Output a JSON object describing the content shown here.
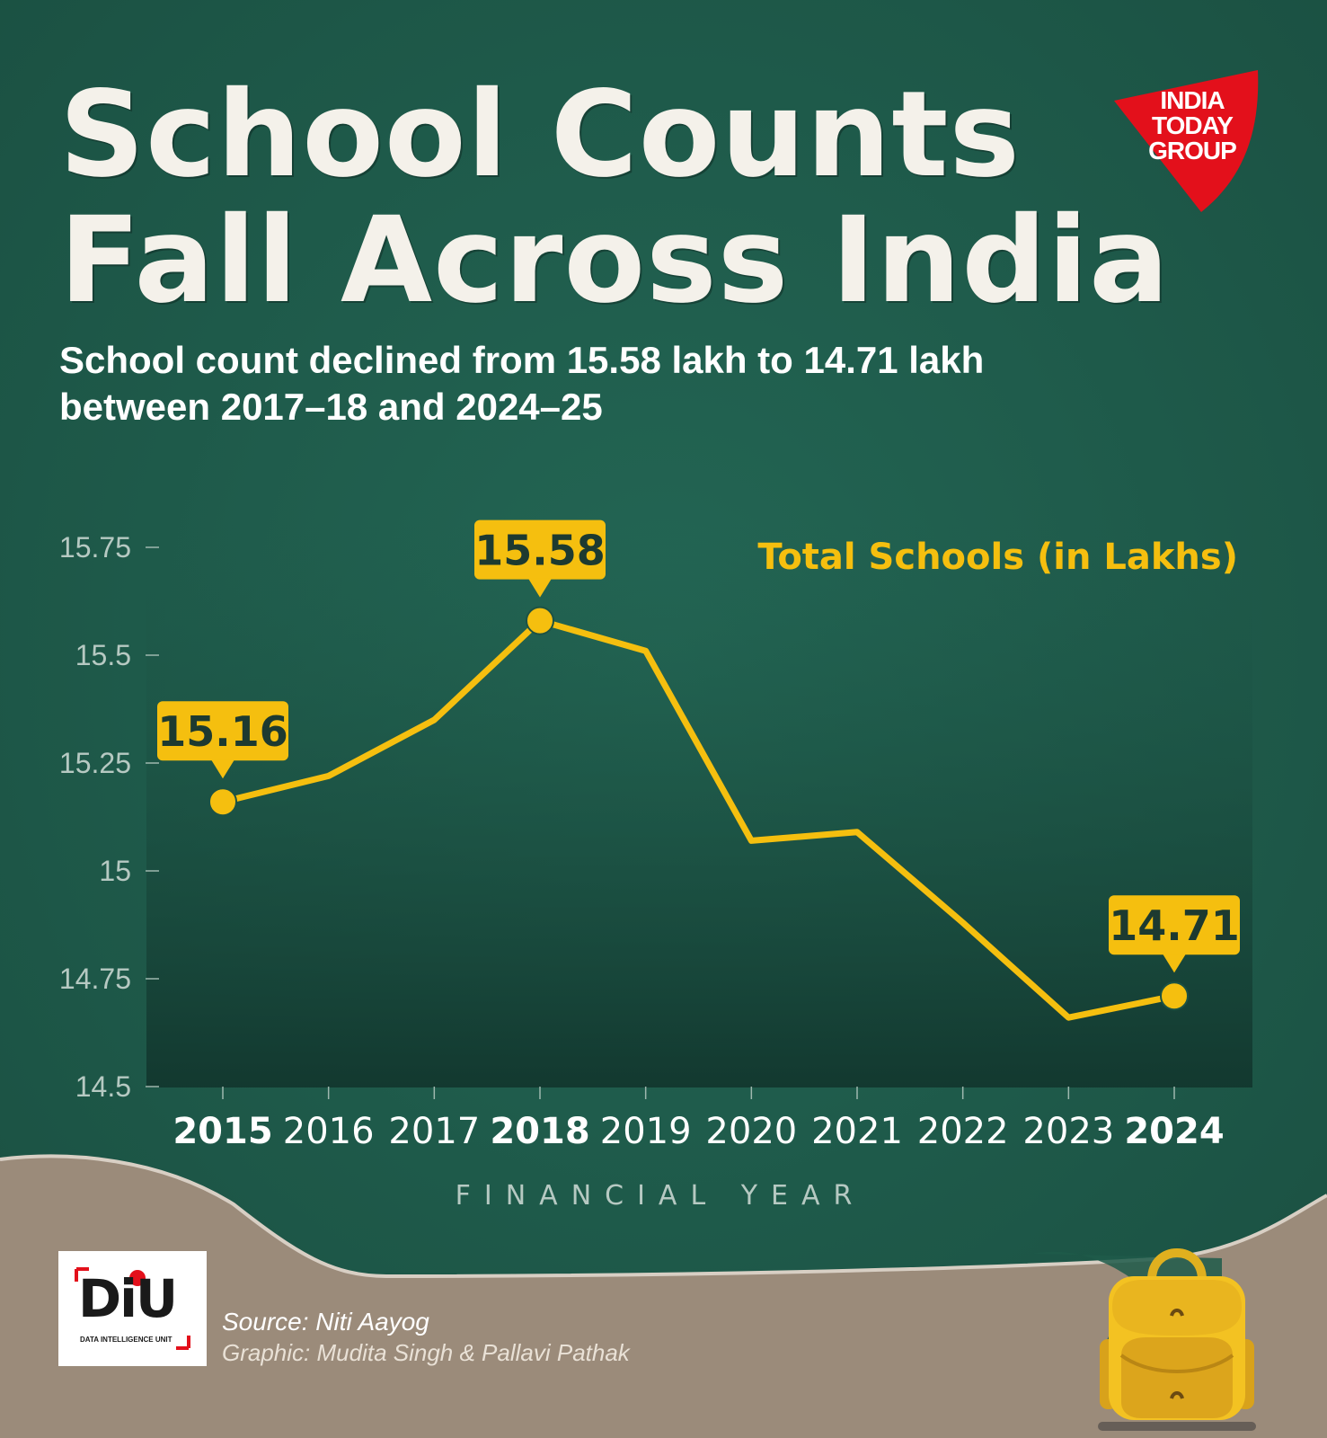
{
  "title": {
    "line1": "School Counts",
    "line2": "Fall Across India"
  },
  "subtitle": {
    "line1": "School count declined from 15.58 lakh to 14.71 lakh",
    "line2": "between 2017–18 and 2024–25"
  },
  "logo": {
    "line1": "INDIA",
    "line2": "TODAY",
    "line3": "GROUP"
  },
  "chart_data": {
    "type": "line",
    "series": [
      {
        "name": "Total Schools (in Lakhs)",
        "x": [
          2015,
          2016,
          2017,
          2018,
          2019,
          2020,
          2021,
          2022,
          2023,
          2024
        ],
        "values": [
          15.16,
          15.22,
          15.35,
          15.58,
          15.51,
          15.07,
          15.09,
          14.88,
          14.66,
          14.71
        ]
      }
    ],
    "xlabel": "FINANCIAL YEAR",
    "ylabel": "",
    "ylim": [
      14.5,
      15.75
    ],
    "yticks": [
      14.5,
      14.75,
      15,
      15.25,
      15.5,
      15.75
    ],
    "ytick_labels": [
      "14.5",
      "14.75",
      "15",
      "15.25",
      "15.5",
      "15.75"
    ],
    "highlighted_years": [
      2015,
      2018,
      2024
    ],
    "callouts": [
      {
        "x": 2015,
        "label": "15.16"
      },
      {
        "x": 2018,
        "label": "15.58"
      },
      {
        "x": 2024,
        "label": "14.71"
      }
    ],
    "legend_position": "top-right",
    "grid": false,
    "colors": {
      "line": "#f5bf0f",
      "callout_fill": "#f5bf0f",
      "callout_text": "#1d3a30",
      "legend_text": "#f5bf0f",
      "axis_text": "#b6c9c2",
      "tick_label_text": "#ffffff"
    }
  },
  "footer": {
    "badge_letters": "DiU",
    "badge_caption": "DATA INTELLIGENCE UNIT",
    "source": "Source: Niti Aayog",
    "graphic": "Graphic: Mudita Singh & Pallavi Pathak"
  },
  "colors": {
    "background": "#1f5a4a",
    "footer_band": "#9b8b7a",
    "logo_red": "#e3101b",
    "accent_yellow": "#f5bf0f"
  },
  "icons": [
    "backpack-icon",
    "india-today-logo"
  ]
}
